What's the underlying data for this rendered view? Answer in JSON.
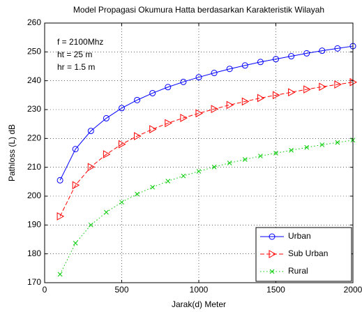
{
  "chart_data": {
    "type": "line",
    "title": "Model Propagasi Okumura Hatta berdasarkan Karakteristik Wilayah",
    "xlabel": "Jarak(d) Meter",
    "ylabel": "Pathloss (L) dB",
    "annotations": [
      "f = 2100Mhz",
      "ht = 25 m",
      "hr = 1.5 m"
    ],
    "x": [
      100,
      200,
      300,
      400,
      500,
      600,
      700,
      800,
      900,
      1000,
      1100,
      1200,
      1300,
      1400,
      1500,
      1600,
      1700,
      1800,
      1900,
      2000
    ],
    "series": [
      {
        "name": "Urban",
        "color": "#0000ff",
        "marker": "o",
        "linestyle": "solid",
        "values": [
          205.5,
          216.3,
          222.6,
          227.0,
          230.5,
          233.3,
          235.7,
          237.8,
          239.6,
          241.2,
          242.7,
          244.1,
          245.3,
          246.5,
          247.5,
          248.5,
          249.5,
          250.4,
          251.2,
          252.0
        ]
      },
      {
        "name": "Sub Urban",
        "color": "#ff0000",
        "marker": ">",
        "linestyle": "dashed",
        "values": [
          193.0,
          203.8,
          210.1,
          214.5,
          218.0,
          220.8,
          223.2,
          225.3,
          227.1,
          228.7,
          230.2,
          231.6,
          232.8,
          234.0,
          235.0,
          236.0,
          237.0,
          237.9,
          238.7,
          239.5
        ]
      },
      {
        "name": "Rural",
        "color": "#00cc00",
        "marker": "x",
        "linestyle": "dotted",
        "values": [
          172.9,
          183.7,
          190.0,
          194.4,
          197.9,
          200.7,
          203.1,
          205.2,
          207.0,
          208.6,
          210.1,
          211.5,
          212.7,
          213.9,
          214.9,
          215.9,
          216.9,
          217.8,
          218.6,
          219.4
        ]
      }
    ],
    "xlim": [
      0,
      2000
    ],
    "xticks": [
      0,
      500,
      1000,
      1500,
      2000
    ],
    "ylim": [
      170,
      260
    ],
    "yticks": [
      170,
      180,
      190,
      200,
      210,
      220,
      230,
      240,
      250,
      260
    ],
    "grid": true,
    "legend": "lower right"
  }
}
